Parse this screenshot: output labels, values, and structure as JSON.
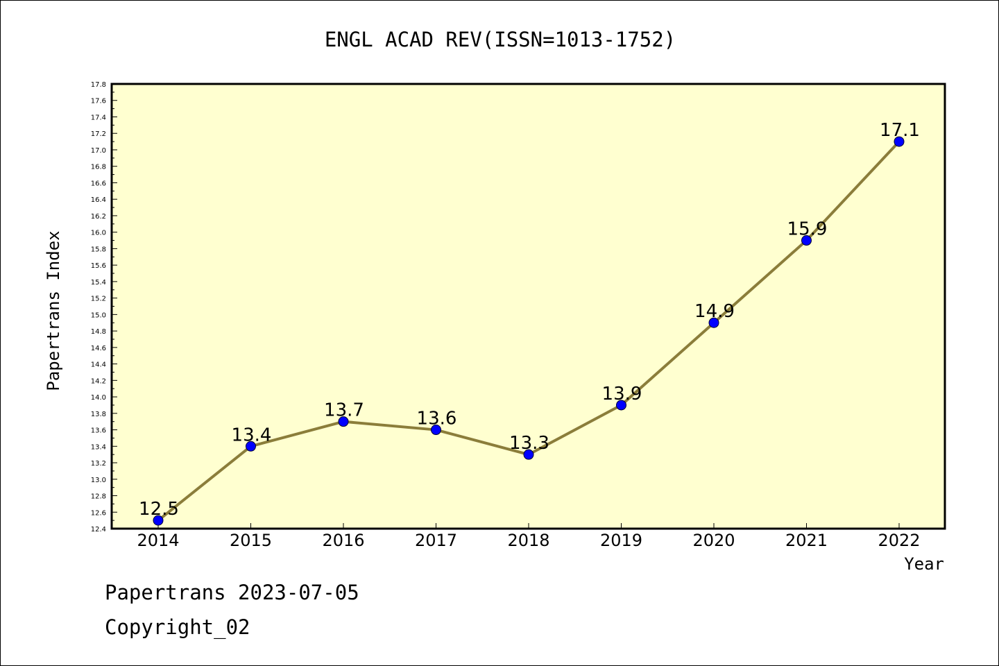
{
  "chart_data": {
    "type": "line",
    "title": "ENGL ACAD REV(ISSN=1013-1752)",
    "xlabel": "Year",
    "ylabel": "Papertrans Index",
    "categories": [
      "2014",
      "2015",
      "2016",
      "2017",
      "2018",
      "2019",
      "2020",
      "2021",
      "2022"
    ],
    "series": [
      {
        "values": [
          12.5,
          13.4,
          13.7,
          13.6,
          13.3,
          13.9,
          14.9,
          15.9,
          17.1
        ],
        "data_labels": [
          "12.5",
          "13.4",
          "13.7",
          "13.6",
          "13.3",
          "13.9",
          "14.9",
          "15.9",
          "17.1"
        ]
      }
    ],
    "ylim": [
      12.4,
      17.8
    ],
    "ytick_step": 0.2,
    "grid": false,
    "legend": "none",
    "colors": {
      "plot_background": "#ffffd0",
      "line": "#8b7d3a",
      "marker": "#0000ff"
    }
  },
  "footer": {
    "date_line": "Papertrans 2023-07-05",
    "copyright_line": "Copyright_02"
  }
}
